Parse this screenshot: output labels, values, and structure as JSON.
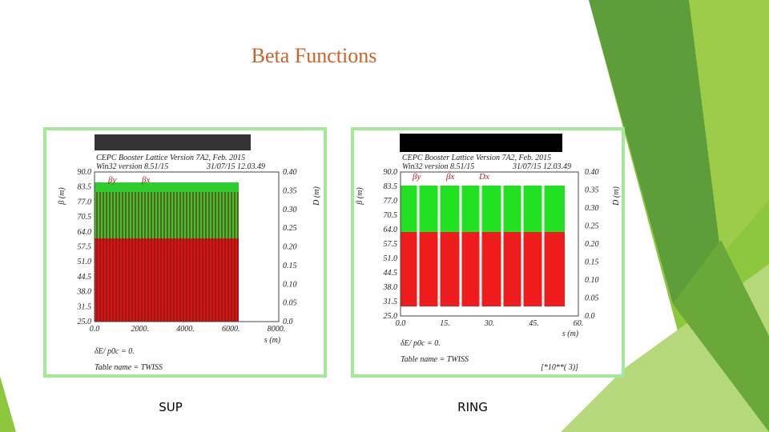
{
  "title": "Beta Functions",
  "panels": [
    {
      "caption": "SUP",
      "header": [
        "CEPC Booster Lattice Version 7A2, Feb. 2015",
        "Win32 version 8.51/15",
        "31/07/15  12.03.49"
      ],
      "legend": [
        "βy",
        "βx"
      ],
      "y_label": "β (m)",
      "y2_label": "D (m)",
      "x_label": "s (m)",
      "yticks": [
        "90.0",
        "83.5",
        "77.0",
        "70.5",
        "64.0",
        "57.5",
        "51.0",
        "44.5",
        "38.0",
        "31.5",
        "25.0"
      ],
      "y2ticks": [
        "0.40",
        "0.35",
        "0.30",
        "0.25",
        "0.20",
        "0.15",
        "0.10",
        "0.05",
        "0.0"
      ],
      "xticks": [
        "0.0",
        "2000.",
        "4000.",
        "6000.",
        "8000."
      ],
      "footer": [
        "δE/ p0c  =  0.",
        "Table name = TWISS"
      ]
    },
    {
      "caption": "RING",
      "header": [
        "CEPC Booster Lattice Version 7A2, Feb. 2015",
        "Win32 version 8.51/15",
        "31/07/15  12.03.49"
      ],
      "legend": [
        "βy",
        "βx",
        "Dx"
      ],
      "y_label": "β (m)",
      "y2_label": "D (m)",
      "x_label": "s (m)",
      "yticks": [
        "90.0",
        "83.5",
        "77.0",
        "70.5",
        "64.0",
        "57.5",
        "51.0",
        "44.5",
        "38.0",
        "31.5",
        "25.0"
      ],
      "y2ticks": [
        "0.40",
        "0.35",
        "0.30",
        "0.25",
        "0.20",
        "0.15",
        "0.10",
        "0.05",
        "0.0"
      ],
      "xticks": [
        "0.0",
        "15.",
        "30.",
        "45.",
        "60."
      ],
      "footer": [
        "δE/ p0c  =  0.",
        "Table name = TWISS",
        "[*10**( 3)]"
      ]
    }
  ]
}
